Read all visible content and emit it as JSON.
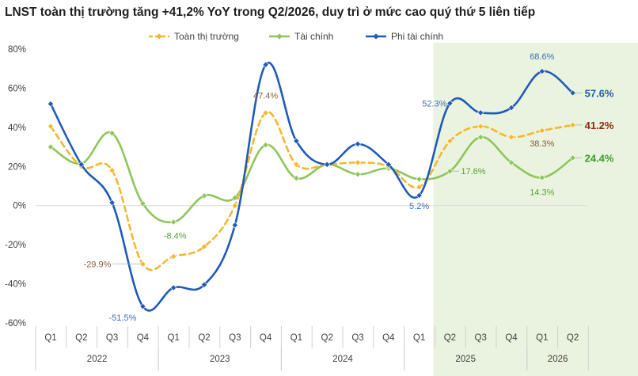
{
  "chart_data": {
    "type": "line",
    "title": "LNST toàn thị trường tăng +41,2% YoY trong Q2/2026, duy trì ở mức cao quý thứ 5 liên tiếp",
    "quarters": [
      "Q1",
      "Q2",
      "Q3",
      "Q4",
      "Q1",
      "Q2",
      "Q3",
      "Q4",
      "Q1",
      "Q2",
      "Q3",
      "Q4",
      "Q1",
      "Q2",
      "Q3",
      "Q4",
      "Q1",
      "Q2"
    ],
    "years": [
      {
        "label": "2022",
        "start": 0,
        "end": 3
      },
      {
        "label": "2023",
        "start": 4,
        "end": 7
      },
      {
        "label": "2024",
        "start": 8,
        "end": 11
      },
      {
        "label": "2025",
        "start": 12,
        "end": 15
      },
      {
        "label": "2026",
        "start": 16,
        "end": 17
      }
    ],
    "ylim": [
      -60,
      80
    ],
    "yticks": [
      -60,
      -40,
      -20,
      0,
      20,
      40,
      60,
      80
    ],
    "ytick_labels": [
      "-60%",
      "-40%",
      "-20%",
      "0%",
      "20%",
      "40%",
      "60%",
      "80%"
    ],
    "highlight": {
      "start": 13,
      "end": 17,
      "color": "#eaf3df"
    },
    "series": [
      {
        "name": "Toàn thị trường",
        "color": "#f5b731",
        "dashed": true,
        "values": [
          40.5,
          20,
          18,
          -29.9,
          -26,
          -21,
          0,
          47.4,
          21,
          21,
          22,
          20,
          9.5,
          33,
          40.5,
          35,
          38.3,
          41.2
        ]
      },
      {
        "name": "Tài chính",
        "color": "#8dc65a",
        "dashed": false,
        "values": [
          30,
          21.5,
          37,
          1,
          -8.4,
          5,
          4,
          31,
          14,
          21,
          16,
          19,
          13.5,
          17.6,
          35,
          22,
          14.3,
          24.4
        ]
      },
      {
        "name": "Phi tài chính",
        "color": "#1f5bb7",
        "dashed": false,
        "values": [
          52,
          21,
          1.5,
          -51.5,
          -42,
          -40.5,
          -10,
          72,
          33,
          21,
          31.5,
          21,
          5.2,
          52.3,
          47.5,
          50,
          68.6,
          57.6
        ]
      }
    ],
    "data_labels": [
      {
        "series": 0,
        "index": 3,
        "text": "-29.9%",
        "color": "#8c5a3c"
      },
      {
        "series": 0,
        "index": 7,
        "text": "47.4%",
        "color": "#8c5a3c"
      },
      {
        "series": 0,
        "index": 16,
        "text": "38.3%",
        "color": "#8c5a3c"
      },
      {
        "series": 1,
        "index": 4,
        "text": "-8.4%",
        "color": "#5aa03a"
      },
      {
        "series": 1,
        "index": 13,
        "text": "17.6%",
        "color": "#5aa03a"
      },
      {
        "series": 1,
        "index": 16,
        "text": "14.3%",
        "color": "#5aa03a"
      },
      {
        "series": 2,
        "index": 3,
        "text": "-51.5%",
        "color": "#3f6fb5"
      },
      {
        "series": 2,
        "index": 12,
        "text": "5.2%",
        "color": "#3f6fb5"
      },
      {
        "series": 2,
        "index": 13,
        "text": "52.3%",
        "color": "#3f6fb5"
      },
      {
        "series": 2,
        "index": 16,
        "text": "68.6%",
        "color": "#3f6fb5"
      }
    ],
    "end_labels": [
      {
        "series": 2,
        "text": "57.6%",
        "color": "#1f5bb7"
      },
      {
        "series": 0,
        "text": "41.2%",
        "color": "#8b2d10"
      },
      {
        "series": 1,
        "text": "24.4%",
        "color": "#3e9a2e"
      }
    ],
    "legend_position": "top-center",
    "grid": false
  }
}
